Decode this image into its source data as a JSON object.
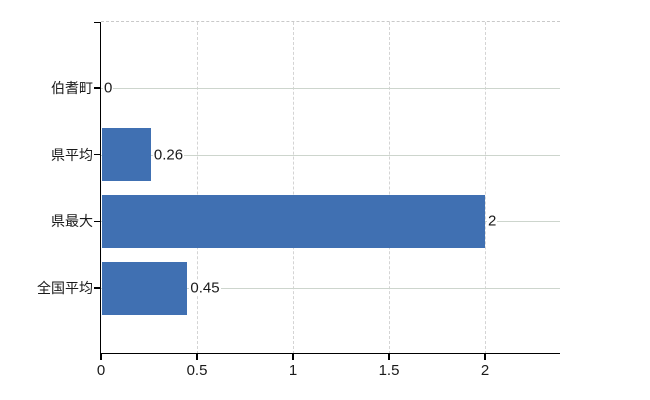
{
  "chart_data": {
    "type": "bar",
    "orientation": "horizontal",
    "title": "",
    "xlabel": "",
    "ylabel": "",
    "categories": [
      "伯耆町",
      "県平均",
      "県最大",
      "全国平均"
    ],
    "values": [
      0,
      0.26,
      2,
      0.45
    ],
    "value_labels": [
      "0",
      "0.26",
      "2",
      "0.45"
    ],
    "x_ticks": [
      0,
      0.5,
      1,
      1.5,
      2
    ],
    "x_tick_labels": [
      "0",
      "0.5",
      "1",
      "1.5",
      "2"
    ],
    "xlim": [
      0,
      2.39
    ],
    "grid": true,
    "legend": false,
    "bar_color": "#4070b2",
    "axis_color": "#000000",
    "h_gridline_color": "#cdd5cd",
    "v_gridline_color": "#d4d4d4",
    "top_border_color": "#c9c9c9",
    "text_color": "#1a1a1a"
  }
}
